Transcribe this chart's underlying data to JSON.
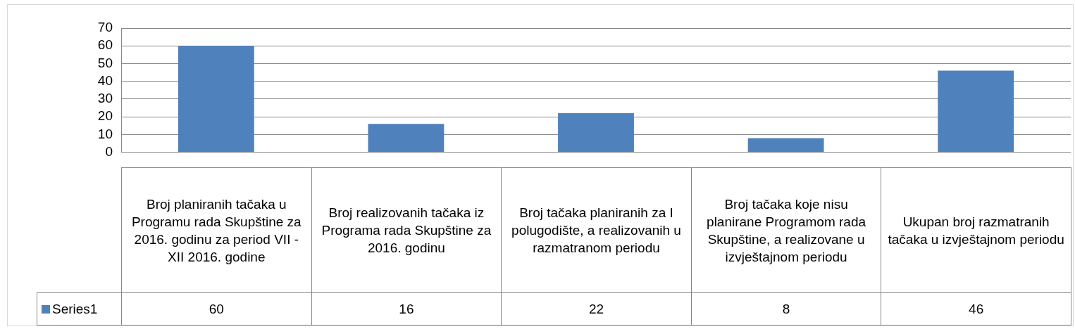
{
  "chart_data": {
    "type": "bar",
    "categories": [
      "Broj planiranih tačaka u Programu rada Skupštine za 2016. godinu za period VII - XII 2016. godine",
      "Broj realizovanih tačaka iz Programa rada Skupštine za 2016. godinu",
      "Broj tačaka planiranih za I polugodište, a realizovanih u razmatranom periodu",
      "Broj tačaka koje nisu planirane Programom rada Skupštine, a realizovane u izvještajnom periodu",
      "Ukupan broj razmatranih tačaka u izvještajnom periodu"
    ],
    "series": [
      {
        "name": "Series1",
        "color": "#4f81bd",
        "values": [
          60,
          16,
          22,
          8,
          46
        ]
      }
    ],
    "ylim": [
      0,
      70
    ],
    "yticks": [
      0,
      10,
      20,
      30,
      40,
      50,
      60,
      70
    ],
    "grid": "y",
    "legend": "bottom left",
    "data_labels": true
  }
}
